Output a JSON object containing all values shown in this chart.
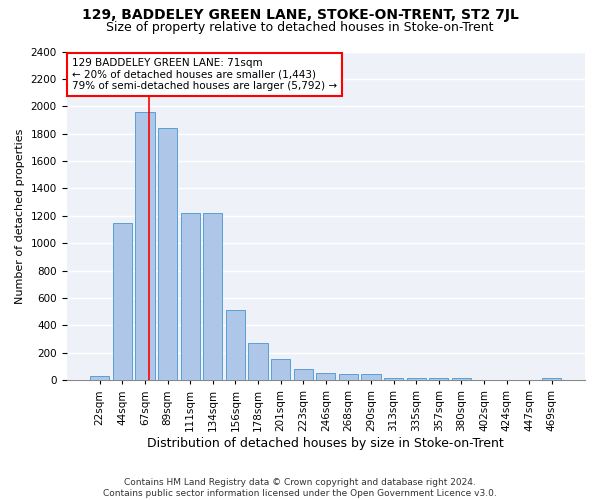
{
  "title": "129, BADDELEY GREEN LANE, STOKE-ON-TRENT, ST2 7JL",
  "subtitle": "Size of property relative to detached houses in Stoke-on-Trent",
  "xlabel": "Distribution of detached houses by size in Stoke-on-Trent",
  "ylabel": "Number of detached properties",
  "categories": [
    "22sqm",
    "44sqm",
    "67sqm",
    "89sqm",
    "111sqm",
    "134sqm",
    "156sqm",
    "178sqm",
    "201sqm",
    "223sqm",
    "246sqm",
    "268sqm",
    "290sqm",
    "313sqm",
    "335sqm",
    "357sqm",
    "380sqm",
    "402sqm",
    "424sqm",
    "447sqm",
    "469sqm"
  ],
  "values": [
    30,
    1150,
    1960,
    1840,
    1220,
    1220,
    510,
    270,
    155,
    80,
    50,
    45,
    45,
    20,
    18,
    15,
    18,
    0,
    0,
    0,
    20
  ],
  "bar_color": "#aec6e8",
  "bar_edge_color": "#5a9fd4",
  "vline_color": "red",
  "annotation_text": "129 BADDELEY GREEN LANE: 71sqm\n← 20% of detached houses are smaller (1,443)\n79% of semi-detached houses are larger (5,792) →",
  "annotation_box_color": "white",
  "annotation_box_edge": "red",
  "ylim": [
    0,
    2400
  ],
  "yticks": [
    0,
    200,
    400,
    600,
    800,
    1000,
    1200,
    1400,
    1600,
    1800,
    2000,
    2200,
    2400
  ],
  "bg_color": "#eef2f8",
  "grid_color": "white",
  "footer": "Contains HM Land Registry data © Crown copyright and database right 2024.\nContains public sector information licensed under the Open Government Licence v3.0.",
  "title_fontsize": 10,
  "subtitle_fontsize": 9,
  "xlabel_fontsize": 9,
  "ylabel_fontsize": 8,
  "tick_fontsize": 7.5,
  "annotation_fontsize": 7.5,
  "footer_fontsize": 6.5,
  "vline_pos": 2.18
}
